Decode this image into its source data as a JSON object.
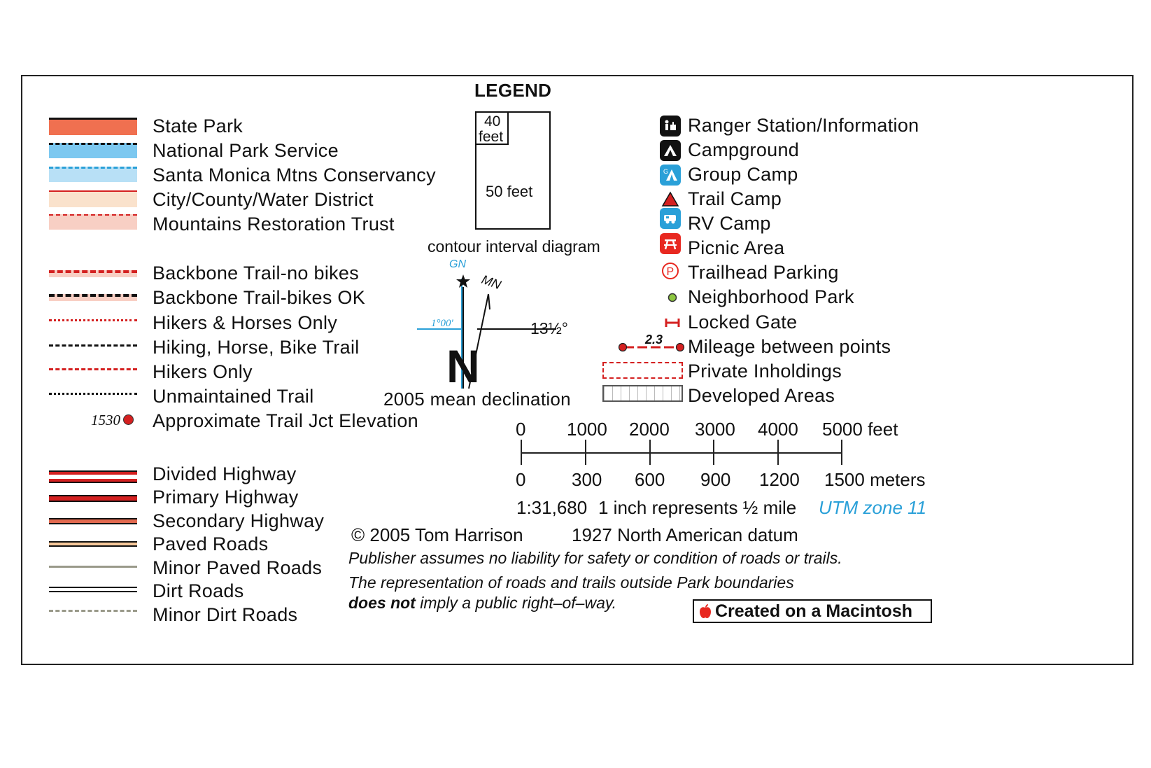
{
  "title": "LEGEND",
  "land_ownership": [
    {
      "label": "State Park",
      "color": "#f07050"
    },
    {
      "label": "National Park Service",
      "color": "#7cc8f0"
    },
    {
      "label": "Santa Monica Mtns Conservancy",
      "color": "#b8e0f6"
    },
    {
      "label": "City/County/Water District",
      "color": "#fae2cc"
    },
    {
      "label": "Mountains Restoration Trust",
      "color": "#f8cfc4"
    }
  ],
  "trails": [
    {
      "label": "Backbone Trail-no bikes"
    },
    {
      "label": "Backbone Trail-bikes OK"
    },
    {
      "label": "Hikers & Horses Only"
    },
    {
      "label": "Hiking, Horse, Bike Trail"
    },
    {
      "label": "Hikers Only"
    },
    {
      "label": "Unmaintained Trail"
    },
    {
      "label": "Approximate Trail Jct Elevation",
      "sample": "1530"
    }
  ],
  "roads": [
    {
      "label": "Divided Highway"
    },
    {
      "label": "Primary Highway"
    },
    {
      "label": "Secondary Highway"
    },
    {
      "label": "Paved Roads"
    },
    {
      "label": "Minor Paved Roads"
    },
    {
      "label": "Dirt Roads"
    },
    {
      "label": "Minor Dirt Roads"
    }
  ],
  "contour_diagram": {
    "small_top": "40",
    "small_bottom": "feet",
    "large": "50 feet",
    "caption": "contour interval diagram"
  },
  "declination": {
    "gn": "GN",
    "mn": "MN",
    "gn_angle": "1°00'",
    "mn_angle": "13½°",
    "north": "N",
    "caption": "2005 mean declination"
  },
  "symbols": [
    {
      "label": "Ranger Station/Information",
      "icon": "ranger-station-icon"
    },
    {
      "label": "Campground",
      "icon": "campground-icon"
    },
    {
      "label": "Group Camp",
      "icon": "group-camp-icon"
    },
    {
      "label": "Trail Camp",
      "icon": "trail-camp-icon"
    },
    {
      "label": "RV Camp",
      "icon": "rv-camp-icon"
    },
    {
      "label": "Picnic Area",
      "icon": "picnic-area-icon"
    },
    {
      "label": "Trailhead Parking",
      "icon": "trailhead-parking-icon"
    },
    {
      "label": "Neighborhood Park",
      "icon": "neighborhood-park-icon"
    },
    {
      "label": "Locked Gate",
      "icon": "locked-gate-icon"
    },
    {
      "label": "Mileage between points",
      "icon": "mileage-icon",
      "sample": "2.3"
    },
    {
      "label": "Private Inholdings",
      "icon": "private-inholdings-icon"
    },
    {
      "label": "Developed Areas",
      "icon": "developed-areas-icon"
    }
  ],
  "scale": {
    "feet_labels": [
      "0",
      "1000",
      "2000",
      "3000",
      "4000",
      "5000 feet"
    ],
    "meter_labels": [
      "0",
      "300",
      "600",
      "900",
      "1200",
      "1500 meters"
    ],
    "ratio": "1:31,680",
    "inch_text": "1 inch represents ½ mile",
    "utm": "UTM zone 11"
  },
  "credits": {
    "copyright": "© 2005 Tom Harrison",
    "datum": "1927 North American datum",
    "disclaimer1": "Publisher assumes no liability for safety or condition of roads or trails.",
    "disclaimer2": "The representation of roads and trails outside Park boundaries",
    "disclaimer3_bold": "does not",
    "disclaimer3_rest": " imply a public right–of–way.",
    "mac_badge": "Created on a Macintosh"
  },
  "colors": {
    "accent_red": "#d42020",
    "blue": "#2aa0d8",
    "black": "#111111"
  }
}
